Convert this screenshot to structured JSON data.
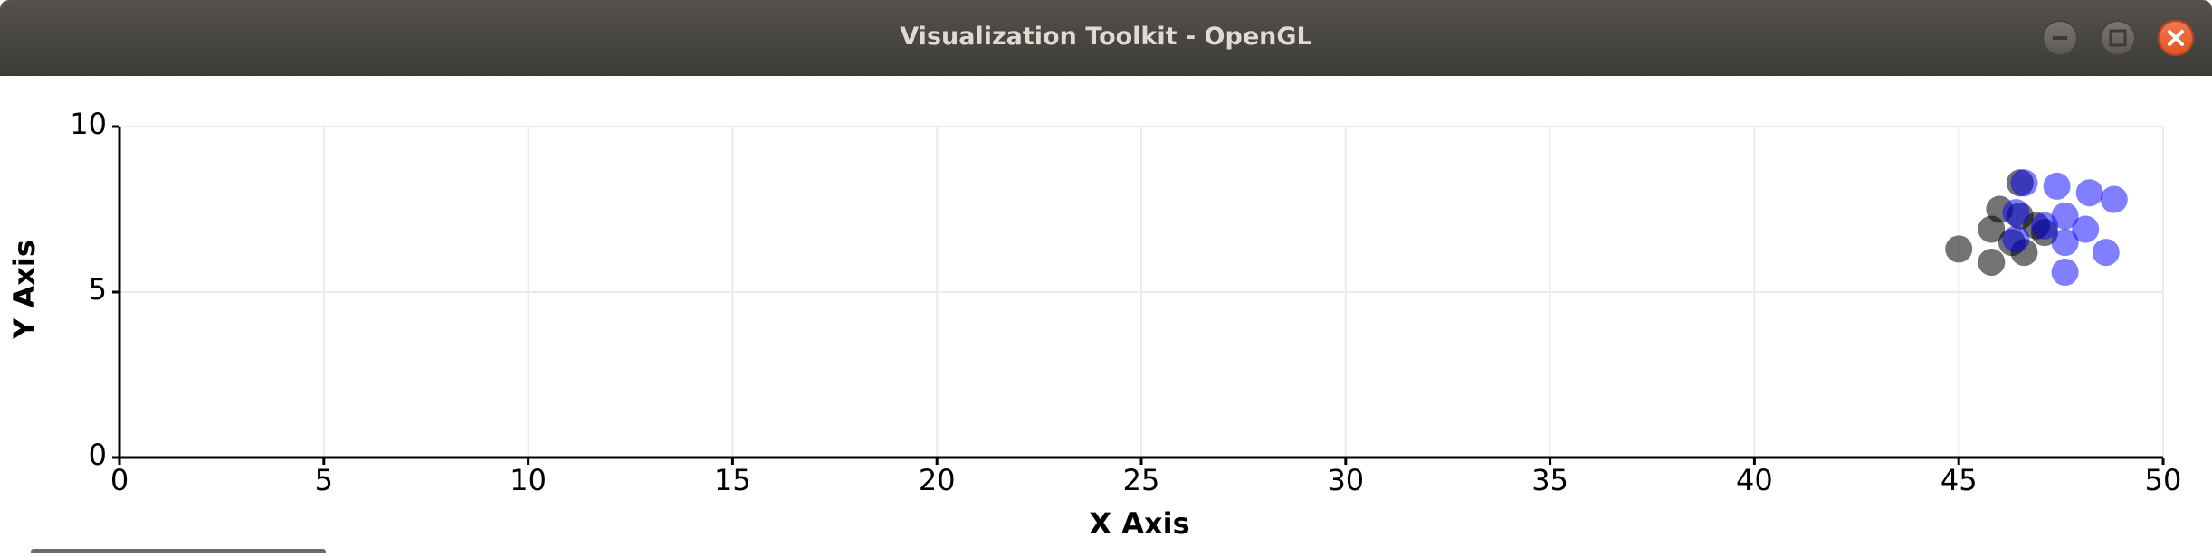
{
  "window": {
    "title": "Visualization Toolkit - OpenGL",
    "buttons": {
      "minimize": "minimize-icon",
      "maximize": "maximize-icon",
      "close": "close-icon"
    }
  },
  "colors": {
    "titlebar": "#3c3b37",
    "grid": "#ebebeb",
    "axis": "#000000",
    "series_dark": "#000000",
    "series_blue": "#0000ff",
    "close_button": "#e9541f"
  },
  "chart_data": {
    "type": "scatter",
    "title": "",
    "xlabel": "X Axis",
    "ylabel": "Y Axis",
    "xlim": [
      0,
      50
    ],
    "ylim": [
      0,
      10
    ],
    "xticks": [
      0,
      5,
      10,
      15,
      20,
      25,
      30,
      35,
      40,
      45,
      50
    ],
    "yticks": [
      0,
      5,
      10
    ],
    "grid": true,
    "legend": "none",
    "series": [
      {
        "color": "#000000",
        "opacity": 0.55,
        "points": [
          {
            "x": 46.0,
            "y": 7.5
          },
          {
            "x": 46.5,
            "y": 7.3
          },
          {
            "x": 46.9,
            "y": 7.0
          },
          {
            "x": 45.8,
            "y": 6.9
          },
          {
            "x": 46.3,
            "y": 6.5
          },
          {
            "x": 46.6,
            "y": 6.2
          },
          {
            "x": 45.0,
            "y": 6.3
          },
          {
            "x": 45.8,
            "y": 5.9
          },
          {
            "x": 46.5,
            "y": 8.3
          },
          {
            "x": 47.1,
            "y": 6.8
          }
        ]
      },
      {
        "color": "#0000ff",
        "opacity": 0.5,
        "points": [
          {
            "x": 46.6,
            "y": 8.3
          },
          {
            "x": 47.4,
            "y": 8.2
          },
          {
            "x": 48.8,
            "y": 7.8
          },
          {
            "x": 48.2,
            "y": 8.0
          },
          {
            "x": 46.4,
            "y": 7.4
          },
          {
            "x": 47.1,
            "y": 7.0
          },
          {
            "x": 47.6,
            "y": 7.3
          },
          {
            "x": 48.1,
            "y": 6.9
          },
          {
            "x": 47.6,
            "y": 6.5
          },
          {
            "x": 46.4,
            "y": 6.6
          },
          {
            "x": 48.6,
            "y": 6.2
          },
          {
            "x": 47.6,
            "y": 5.6
          }
        ]
      }
    ]
  }
}
